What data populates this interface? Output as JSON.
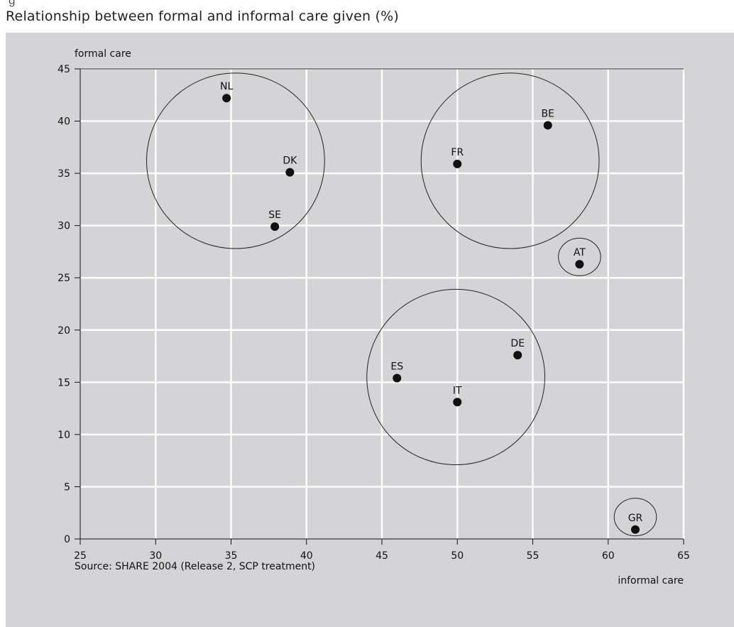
{
  "figure_label": "g",
  "chart_data": {
    "type": "scatter",
    "title": "Relationship between formal and informal care given (%)",
    "xlabel": "informal care",
    "ylabel": "formal care",
    "xlim": [
      25,
      65
    ],
    "ylim": [
      0,
      45
    ],
    "xticks": [
      25,
      30,
      35,
      40,
      45,
      50,
      55,
      60,
      65
    ],
    "yticks": [
      0,
      5,
      10,
      15,
      20,
      25,
      30,
      35,
      40,
      45
    ],
    "grid": true,
    "points": [
      {
        "label": "NL",
        "x": 34.7,
        "y": 42.2
      },
      {
        "label": "DK",
        "x": 38.9,
        "y": 35.1
      },
      {
        "label": "SE",
        "x": 37.9,
        "y": 29.9
      },
      {
        "label": "FR",
        "x": 50.0,
        "y": 35.9
      },
      {
        "label": "BE",
        "x": 56.0,
        "y": 39.6
      },
      {
        "label": "AT",
        "x": 58.1,
        "y": 26.3
      },
      {
        "label": "ES",
        "x": 46.0,
        "y": 15.4
      },
      {
        "label": "DE",
        "x": 54.0,
        "y": 17.6
      },
      {
        "label": "IT",
        "x": 50.0,
        "y": 13.1
      },
      {
        "label": "GR",
        "x": 61.8,
        "y": 0.9
      }
    ],
    "cluster_circles": [
      {
        "members": [
          "NL",
          "DK",
          "SE"
        ],
        "cx": 35.3,
        "cy": 36.2,
        "rx_units": 5.9,
        "ry_units": 8.4
      },
      {
        "members": [
          "FR",
          "BE"
        ],
        "cx": 53.5,
        "cy": 36.2,
        "rx_units": 5.9,
        "ry_units": 8.4
      },
      {
        "members": [
          "AT"
        ],
        "cx": 58.1,
        "cy": 27.0,
        "rx_units": 1.4,
        "ry_units": 1.8
      },
      {
        "members": [
          "ES",
          "DE",
          "IT"
        ],
        "cx": 49.9,
        "cy": 15.5,
        "rx_units": 5.9,
        "ry_units": 8.4
      },
      {
        "members": [
          "GR"
        ],
        "cx": 61.8,
        "cy": 2.1,
        "rx_units": 1.4,
        "ry_units": 1.8
      }
    ],
    "source": "Source: SHARE 2004 (Release 2, SCP treatment)"
  }
}
